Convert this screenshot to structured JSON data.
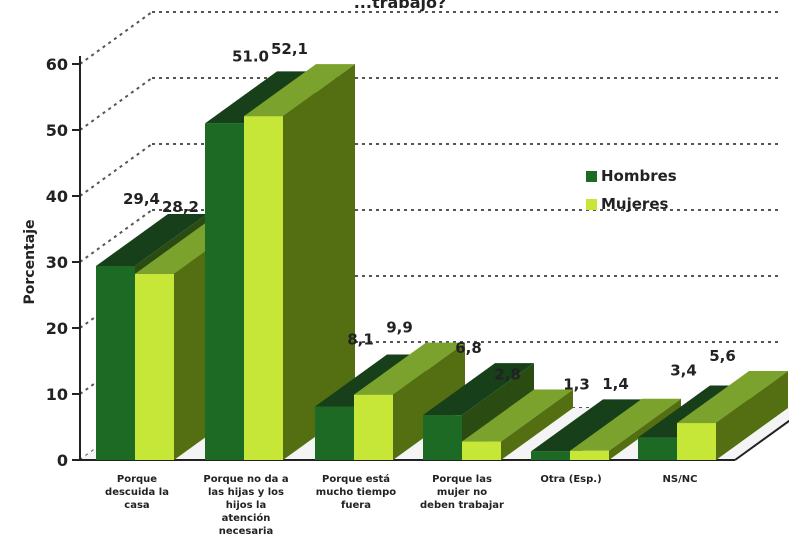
{
  "chart_data": {
    "type": "bar",
    "title": "...trabajo?",
    "ylabel": "Porcentaje",
    "xlabel": "",
    "ylim": [
      0,
      60
    ],
    "yticks": [
      0,
      10,
      20,
      30,
      40,
      50,
      60
    ],
    "grid": true,
    "legend_position": "right",
    "categories": [
      [
        "Porque",
        "descuida la",
        "casa"
      ],
      [
        "Porque no da a",
        "las hijas y los",
        "hijos la",
        "atención",
        "necesaria"
      ],
      [
        "Porque está",
        "mucho tiempo",
        "fuera"
      ],
      [
        "Porque las",
        "mujer no",
        "deben trabajar"
      ],
      [
        "Otra (Esp.)"
      ],
      [
        "NS/NC"
      ]
    ],
    "series": [
      {
        "name": "Hombres",
        "color": "#1e6b25",
        "values": [
          29.4,
          51.0,
          8.1,
          6.8,
          1.3,
          3.4
        ],
        "labels": [
          "29,4",
          "51.0",
          "8,1",
          "6,8",
          "1,3",
          "3,4"
        ]
      },
      {
        "name": "Mujeres",
        "color": "#c4e52e",
        "values": [
          28.2,
          52.1,
          9.9,
          2.8,
          1.4,
          5.6
        ],
        "labels": [
          "28,2",
          "52,1",
          "9,9",
          "2,8",
          "1,4",
          "5,6"
        ]
      }
    ]
  }
}
